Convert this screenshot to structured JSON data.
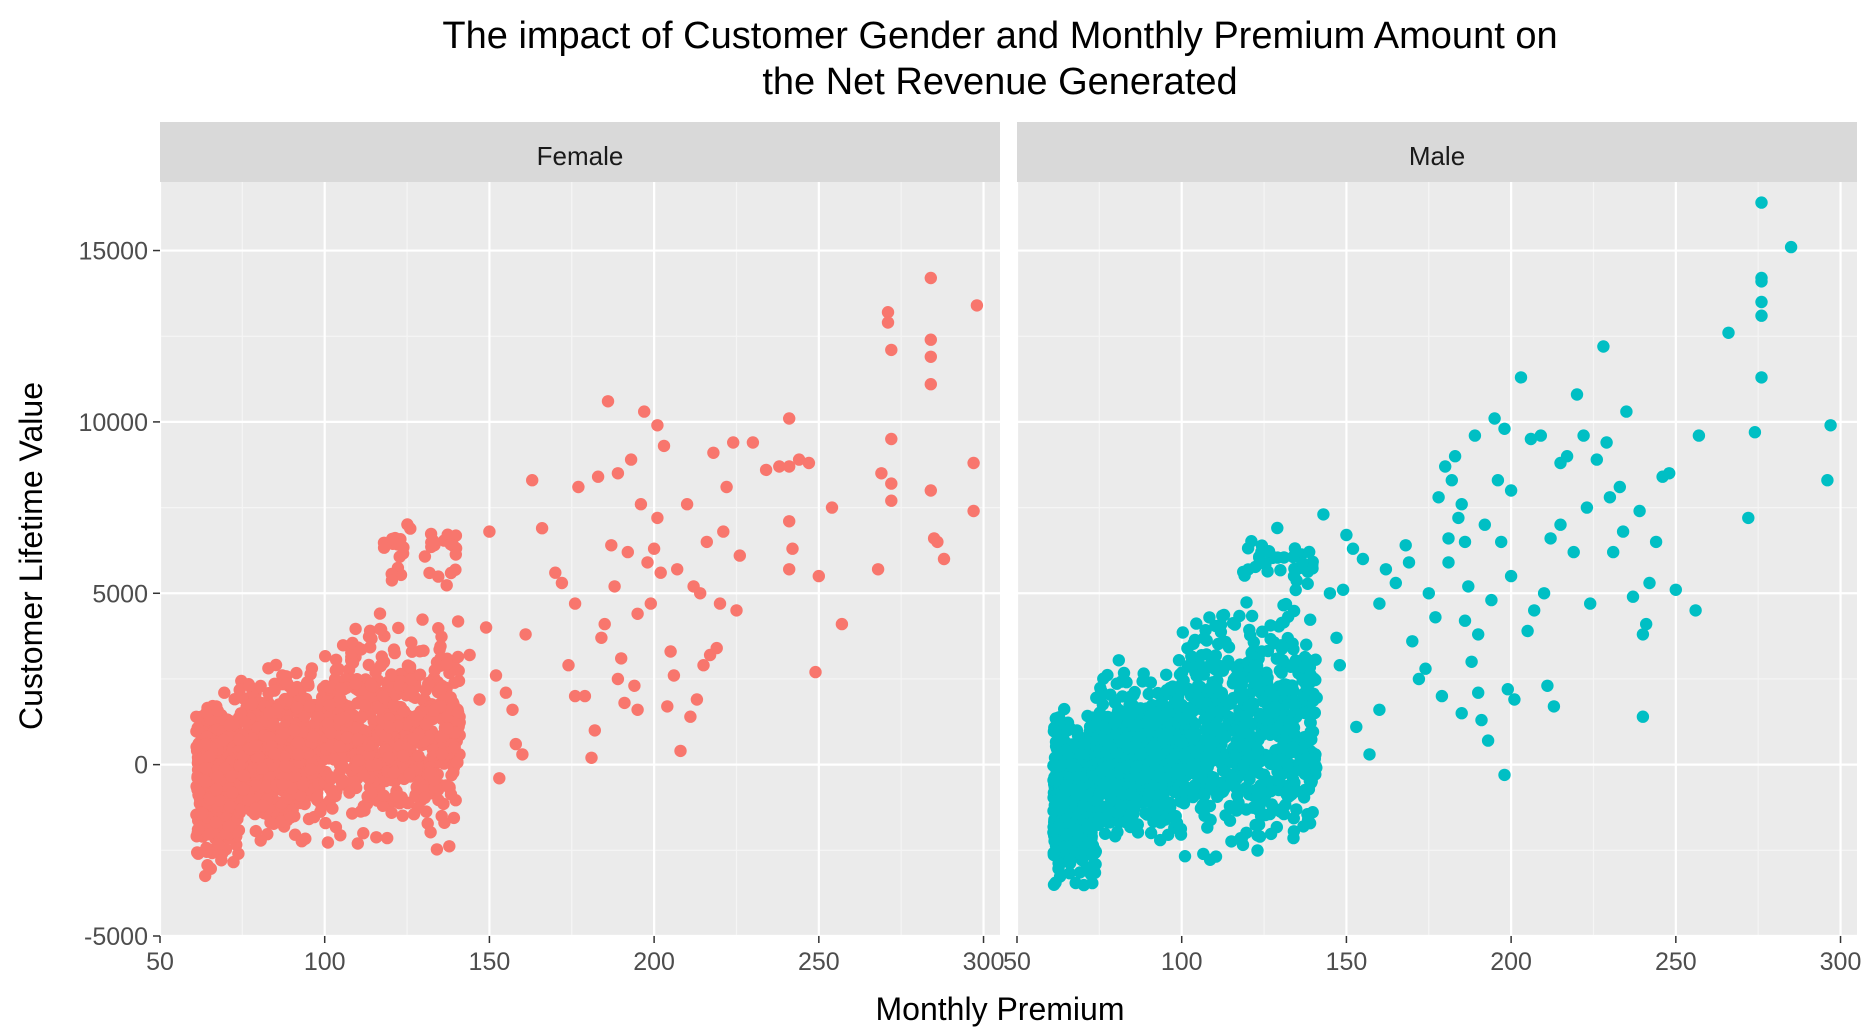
{
  "chart_data": {
    "type": "scatter",
    "title_line1": "The impact of Customer Gender and Monthly Premium Amount on",
    "title_line2": "the Net Revenue Generated",
    "xlabel": "Monthly Premium",
    "ylabel": "Customer Lifetime Value",
    "xlim": [
      50,
      305
    ],
    "ylim": [
      -5000,
      17000
    ],
    "x_ticks": [
      50,
      100,
      150,
      200,
      250,
      300
    ],
    "y_ticks": [
      -5000,
      0,
      5000,
      10000,
      15000
    ],
    "grid": true,
    "legend": "none",
    "facets": [
      {
        "name": "Female",
        "color": "#F8766D",
        "clusters": [
          {
            "x": [
              61,
              74
            ],
            "y": [
              -3600,
              2700
            ],
            "n": 450
          },
          {
            "x": [
              74,
              100
            ],
            "y": [
              -2700,
              3300
            ],
            "n": 550
          },
          {
            "x": [
              100,
              141
            ],
            "y": [
              -2900,
              5000
            ],
            "n": 650
          },
          {
            "x": [
              118,
              141
            ],
            "y": [
              4800,
              7400
            ],
            "n": 35
          }
        ],
        "points": [
          [
            150,
            6800
          ],
          [
            149,
            4000
          ],
          [
            152,
            2600
          ],
          [
            155,
            2100
          ],
          [
            157,
            1600
          ],
          [
            158,
            600
          ],
          [
            160,
            300
          ],
          [
            153,
            -400
          ],
          [
            147,
            1900
          ],
          [
            144,
            3200
          ],
          [
            161,
            3800
          ],
          [
            163,
            8300
          ],
          [
            166,
            6900
          ],
          [
            170,
            5600
          ],
          [
            172,
            5300
          ],
          [
            174,
            2900
          ],
          [
            176,
            4700
          ],
          [
            176,
            2000
          ],
          [
            177,
            8100
          ],
          [
            179,
            2000
          ],
          [
            181,
            200
          ],
          [
            182,
            1000
          ],
          [
            184,
            3700
          ],
          [
            185,
            4100
          ],
          [
            186,
            10600
          ],
          [
            187,
            6400
          ],
          [
            188,
            5200
          ],
          [
            189,
            8500
          ],
          [
            190,
            3100
          ],
          [
            191,
            1800
          ],
          [
            192,
            6200
          ],
          [
            193,
            8900
          ],
          [
            194,
            2300
          ],
          [
            195,
            1600
          ],
          [
            196,
            7600
          ],
          [
            197,
            10300
          ],
          [
            198,
            5900
          ],
          [
            199,
            4700
          ],
          [
            200,
            6300
          ],
          [
            201,
            9900
          ],
          [
            202,
            5600
          ],
          [
            203,
            9300
          ],
          [
            204,
            1700
          ],
          [
            205,
            3300
          ],
          [
            206,
            2600
          ],
          [
            207,
            5700
          ],
          [
            208,
            400
          ],
          [
            201,
            7200
          ],
          [
            195,
            4400
          ],
          [
            189,
            2500
          ],
          [
            211,
            1400
          ],
          [
            212,
            5200
          ],
          [
            213,
            1900
          ],
          [
            215,
            2900
          ],
          [
            216,
            6500
          ],
          [
            218,
            9100
          ],
          [
            219,
            3400
          ],
          [
            220,
            4700
          ],
          [
            221,
            6800
          ],
          [
            222,
            8100
          ],
          [
            224,
            9400
          ],
          [
            225,
            4500
          ],
          [
            230,
            9400
          ],
          [
            234,
            8600
          ],
          [
            238,
            8700
          ],
          [
            241,
            10100
          ],
          [
            241,
            8700
          ],
          [
            241,
            7100
          ],
          [
            241,
            5700
          ],
          [
            242,
            6300
          ],
          [
            244,
            8900
          ],
          [
            247,
            8800
          ],
          [
            249,
            2700
          ],
          [
            250,
            5500
          ],
          [
            254,
            7500
          ],
          [
            257,
            4100
          ],
          [
            268,
            5700
          ],
          [
            269,
            8500
          ],
          [
            271,
            13200
          ],
          [
            271,
            12900
          ],
          [
            272,
            12100
          ],
          [
            272,
            9500
          ],
          [
            272,
            8200
          ],
          [
            272,
            7700
          ],
          [
            284,
            14200
          ],
          [
            284,
            12400
          ],
          [
            284,
            11900
          ],
          [
            284,
            11100
          ],
          [
            284,
            8000
          ],
          [
            285,
            6600
          ],
          [
            286,
            6500
          ],
          [
            288,
            6000
          ],
          [
            297,
            8800
          ],
          [
            297,
            7400
          ],
          [
            298,
            13400
          ],
          [
            226,
            6100
          ],
          [
            217,
            3200
          ],
          [
            214,
            5000
          ],
          [
            210,
            7600
          ],
          [
            183,
            8400
          ]
        ]
      },
      {
        "name": "Male",
        "color": "#00BFC4",
        "clusters": [
          {
            "x": [
              61,
              74
            ],
            "y": [
              -4300,
              2400
            ],
            "n": 450
          },
          {
            "x": [
              74,
              100
            ],
            "y": [
              -2900,
              3300
            ],
            "n": 550
          },
          {
            "x": [
              100,
              141
            ],
            "y": [
              -3100,
              5200
            ],
            "n": 650
          },
          {
            "x": [
              118,
              141
            ],
            "y": [
              4900,
              7000
            ],
            "n": 35
          }
        ],
        "points": [
          [
            143,
            7300
          ],
          [
            145,
            5000
          ],
          [
            147,
            3700
          ],
          [
            148,
            2900
          ],
          [
            150,
            6700
          ],
          [
            152,
            6300
          ],
          [
            153,
            1100
          ],
          [
            155,
            6000
          ],
          [
            157,
            300
          ],
          [
            160,
            1600
          ],
          [
            162,
            5700
          ],
          [
            165,
            5300
          ],
          [
            168,
            6400
          ],
          [
            170,
            3600
          ],
          [
            172,
            2500
          ],
          [
            174,
            2800
          ],
          [
            175,
            5000
          ],
          [
            177,
            4300
          ],
          [
            178,
            7800
          ],
          [
            179,
            2000
          ],
          [
            180,
            8700
          ],
          [
            181,
            5900
          ],
          [
            182,
            8300
          ],
          [
            183,
            9000
          ],
          [
            184,
            7200
          ],
          [
            185,
            1500
          ],
          [
            186,
            6500
          ],
          [
            187,
            5200
          ],
          [
            188,
            3000
          ],
          [
            189,
            9600
          ],
          [
            190,
            2100
          ],
          [
            191,
            1300
          ],
          [
            192,
            7000
          ],
          [
            193,
            700
          ],
          [
            194,
            4800
          ],
          [
            195,
            10100
          ],
          [
            196,
            8300
          ],
          [
            197,
            6500
          ],
          [
            198,
            -300
          ],
          [
            199,
            2200
          ],
          [
            200,
            8000
          ],
          [
            200,
            5500
          ],
          [
            190,
            3800
          ],
          [
            185,
            7600
          ],
          [
            201,
            1900
          ],
          [
            203,
            11300
          ],
          [
            205,
            3900
          ],
          [
            207,
            4500
          ],
          [
            209,
            9600
          ],
          [
            210,
            5000
          ],
          [
            211,
            2300
          ],
          [
            212,
            6600
          ],
          [
            213,
            1700
          ],
          [
            215,
            7000
          ],
          [
            217,
            9000
          ],
          [
            219,
            6200
          ],
          [
            220,
            10800
          ],
          [
            222,
            9600
          ],
          [
            224,
            4700
          ],
          [
            226,
            8900
          ],
          [
            228,
            12200
          ],
          [
            229,
            9400
          ],
          [
            230,
            7800
          ],
          [
            231,
            6200
          ],
          [
            233,
            8100
          ],
          [
            235,
            10300
          ],
          [
            237,
            4900
          ],
          [
            239,
            7400
          ],
          [
            240,
            3800
          ],
          [
            240,
            1400
          ],
          [
            241,
            4100
          ],
          [
            242,
            5300
          ],
          [
            244,
            6500
          ],
          [
            246,
            8400
          ],
          [
            248,
            8500
          ],
          [
            250,
            5100
          ],
          [
            257,
            9600
          ],
          [
            256,
            4500
          ],
          [
            266,
            12600
          ],
          [
            272,
            7200
          ],
          [
            274,
            9700
          ],
          [
            276,
            16400
          ],
          [
            276,
            14200
          ],
          [
            276,
            14100
          ],
          [
            276,
            13500
          ],
          [
            276,
            13100
          ],
          [
            276,
            11300
          ],
          [
            285,
            15100
          ],
          [
            296,
            8300
          ],
          [
            297,
            9900
          ],
          [
            234,
            6800
          ],
          [
            223,
            7500
          ],
          [
            215,
            8800
          ],
          [
            206,
            9500
          ],
          [
            198,
            9800
          ],
          [
            186,
            4200
          ],
          [
            181,
            6600
          ],
          [
            169,
            5900
          ],
          [
            160,
            4700
          ],
          [
            149,
            5100
          ]
        ]
      }
    ]
  }
}
